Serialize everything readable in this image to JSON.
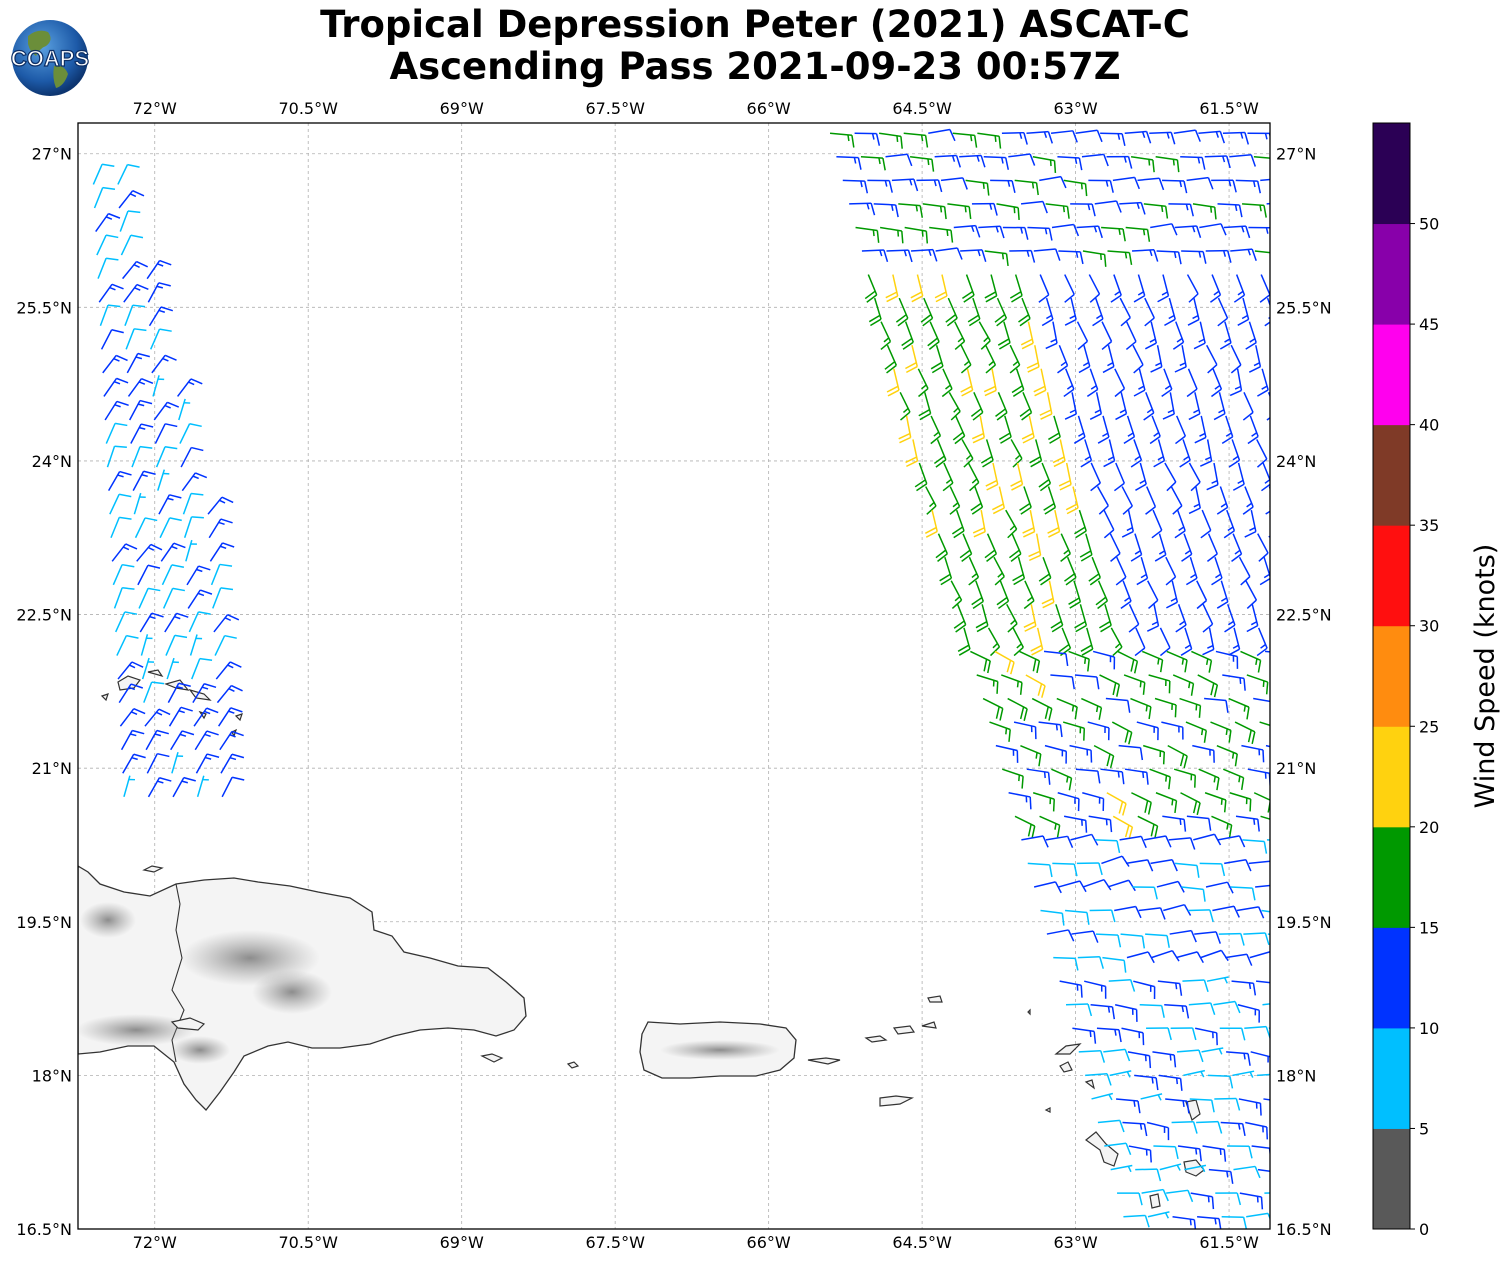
{
  "title": {
    "line1": "Tropical Depression Peter (2021) ASCAT-C",
    "line2": "Ascending Pass 2021-09-23 00:57Z"
  },
  "logo": {
    "text": "COAPS"
  },
  "map": {
    "projection": "plate-carree",
    "lon_range": [
      -72.75,
      -61.1
    ],
    "lat_range": [
      16.5,
      27.3
    ],
    "grid": true,
    "lon_ticks": [
      {
        "value": -72.0,
        "label": "72°W"
      },
      {
        "value": -70.5,
        "label": "70.5°W"
      },
      {
        "value": -69.0,
        "label": "69°W"
      },
      {
        "value": -67.5,
        "label": "67.5°W"
      },
      {
        "value": -66.0,
        "label": "66°W"
      },
      {
        "value": -64.5,
        "label": "64.5°W"
      },
      {
        "value": -63.0,
        "label": "63°W"
      },
      {
        "value": -61.5,
        "label": "61.5°W"
      }
    ],
    "lat_ticks": [
      {
        "value": 27.0,
        "label": "27°N"
      },
      {
        "value": 25.5,
        "label": "25.5°N"
      },
      {
        "value": 24.0,
        "label": "24°N"
      },
      {
        "value": 22.5,
        "label": "22.5°N"
      },
      {
        "value": 21.0,
        "label": "21°N"
      },
      {
        "value": 19.5,
        "label": "19.5°N"
      },
      {
        "value": 18.0,
        "label": "18°N"
      },
      {
        "value": 16.5,
        "label": "16.5°N"
      }
    ],
    "swaths": [
      {
        "name": "west",
        "lon_n": -72.6,
        "lon_s": -72.3,
        "lat_n": 26.7,
        "lat_s": 20.7,
        "width": 1.15
      },
      {
        "name": "east",
        "lon_n": -65.4,
        "lon_s": -62.5,
        "lat_n": 27.2,
        "lat_s": 16.5,
        "width": 4.6
      }
    ]
  },
  "colorbar": {
    "label": "Wind Speed (knots)",
    "levels": [
      0,
      5,
      10,
      15,
      20,
      25,
      30,
      35,
      40,
      45,
      50,
      55
    ],
    "tick_labels": [
      "0",
      "5",
      "10",
      "15",
      "20",
      "25",
      "30",
      "35",
      "40",
      "45",
      "50"
    ],
    "colors": [
      "#595959",
      "#00bfff",
      "#0033ff",
      "#009900",
      "#ffd20f",
      "#ff8c0f",
      "#ff0f0f",
      "#7f3a27",
      "#ff00ee",
      "#8800aa",
      "#2b0055"
    ]
  }
}
